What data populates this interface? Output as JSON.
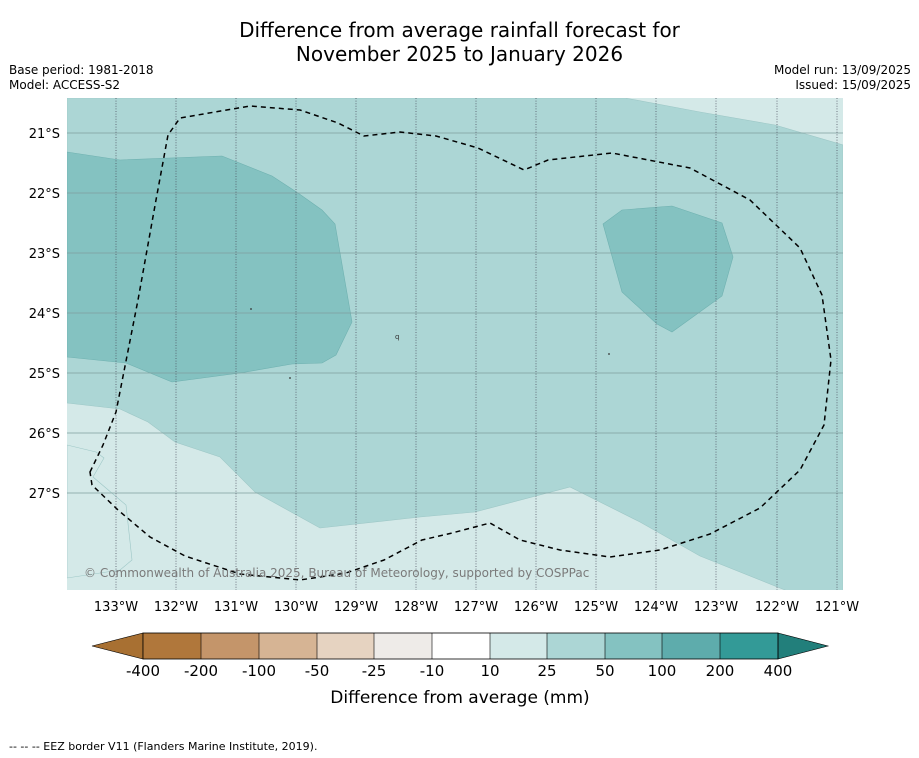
{
  "title": {
    "line1": "Difference from average rainfall forecast for",
    "line2": "November 2025 to January 2026"
  },
  "info_left": {
    "base_period": "Base period: 1981-2018",
    "model": "Model: ACCESS-S2"
  },
  "info_right": {
    "model_run": "Model run: 13/09/2025",
    "issued": "Issued: 15/09/2025"
  },
  "map": {
    "lat_labels": [
      "21°S",
      "22°S",
      "23°S",
      "24°S",
      "25°S",
      "26°S",
      "27°S"
    ],
    "lon_labels": [
      "133°W",
      "132°W",
      "131°W",
      "130°W",
      "129°W",
      "128°W",
      "127°W",
      "126°W",
      "125°W",
      "124°W",
      "123°W",
      "122°W",
      "121°W"
    ],
    "copyright": "© Commonwealth of Australia 2025, Bureau of Meteorology, supported by COSPPac",
    "island_label": "q"
  },
  "colorbar": {
    "tick_labels": [
      "-400",
      "-200",
      "-100",
      "-50",
      "-25",
      "-10",
      "10",
      "25",
      "50",
      "100",
      "200",
      "400"
    ],
    "colors": [
      "#a87032",
      "#b0773b",
      "#c4956a",
      "#d6b494",
      "#e6d3c1",
      "#eeebe8",
      "#ffffff",
      "#d4e9e8",
      "#acd6d5",
      "#84c2c1",
      "#5eacac",
      "#339a97",
      "#227f7b"
    ],
    "label": "Difference from average (mm)"
  },
  "footnote": "--  --  -- EEZ border V11 (Flanders Marine Institute, 2019)."
}
